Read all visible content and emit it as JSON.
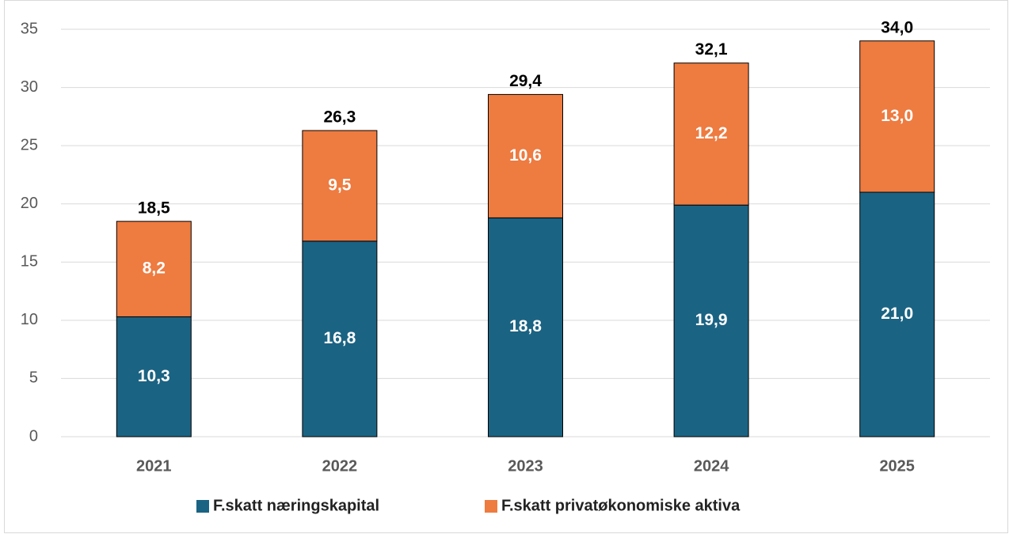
{
  "chart_data": {
    "type": "stacked_bar",
    "categories": [
      "2021",
      "2022",
      "2023",
      "2024",
      "2025"
    ],
    "series": [
      {
        "name": "F.skatt næringskapital",
        "color": "#1b6383",
        "values": [
          10.3,
          16.8,
          18.8,
          19.9,
          21.0
        ],
        "value_labels": [
          "10,3",
          "16,8",
          "18,8",
          "19,9",
          "21,0"
        ]
      },
      {
        "name": "F.skatt privatøkonomiske aktiva",
        "color": "#ee7b40",
        "values": [
          8.2,
          9.5,
          10.6,
          12.2,
          13.0
        ],
        "value_labels": [
          "8,2",
          "9,5",
          "10,6",
          "12,2",
          "13,0"
        ]
      }
    ],
    "totals": [
      18.5,
      26.3,
      29.4,
      32.1,
      34.0
    ],
    "total_labels": [
      "18,5",
      "26,3",
      "29,4",
      "32,1",
      "34,0"
    ],
    "ylim": [
      0,
      35
    ],
    "yticks": [
      0,
      5,
      10,
      15,
      20,
      25,
      30,
      35
    ],
    "grid": true,
    "legend": "bottom"
  }
}
